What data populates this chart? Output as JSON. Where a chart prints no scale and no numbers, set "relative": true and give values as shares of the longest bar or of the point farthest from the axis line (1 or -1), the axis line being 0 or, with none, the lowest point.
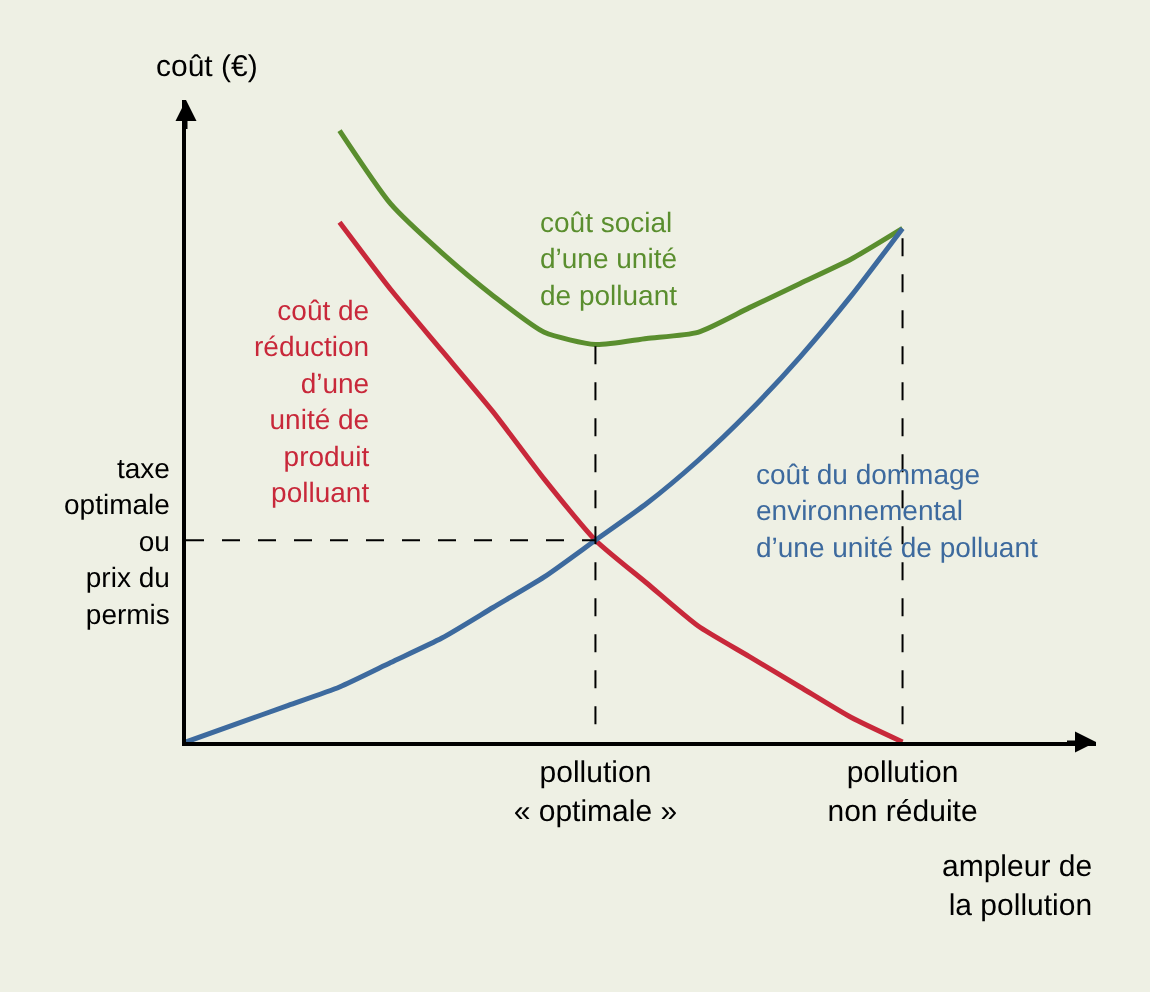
{
  "chart_data": {
    "type": "line",
    "relative": true,
    "xlabel": "ampleur de\nla pollution",
    "ylabel": "coût (€)",
    "categories": [
      null,
      null,
      null,
      null,
      null,
      null,
      null,
      null,
      "pollution\n« optimale »",
      null,
      null,
      null,
      null,
      null,
      "pollution\nnon réduite"
    ],
    "series": [
      {
        "name": "coût de\nréduction\nd’une\nunité de\nproduit\npolluant",
        "color": "#c8283a",
        "values": [
          null,
          null,
          null,
          0.85,
          0.74,
          0.64,
          0.54,
          0.43,
          0.33,
          0.26,
          0.19,
          0.14,
          0.09,
          0.04,
          0
        ]
      },
      {
        "name": "coût social\nd’une unité\nde polluant",
        "color": "#5a8e2e",
        "values": [
          null,
          null,
          null,
          1,
          0.88,
          0.8,
          0.73,
          0.67,
          0.65,
          0.66,
          0.67,
          0.71,
          0.75,
          0.79,
          0.84
        ]
      },
      {
        "name": "coût du dommage\nenvironnemental\nd’une unité de polluant",
        "color": "#3d6a9e",
        "values": [
          0,
          0.03,
          0.06,
          0.09,
          0.13,
          0.17,
          0.22,
          0.27,
          0.33,
          0.39,
          0.46,
          0.54,
          0.63,
          0.73,
          0.84
        ]
      }
    ],
    "annotations": [
      "taxe\noptimale\nou\nprix du\npermis"
    ],
    "grid": false,
    "legend": false,
    "line_style": "solid",
    "marker": "none"
  }
}
